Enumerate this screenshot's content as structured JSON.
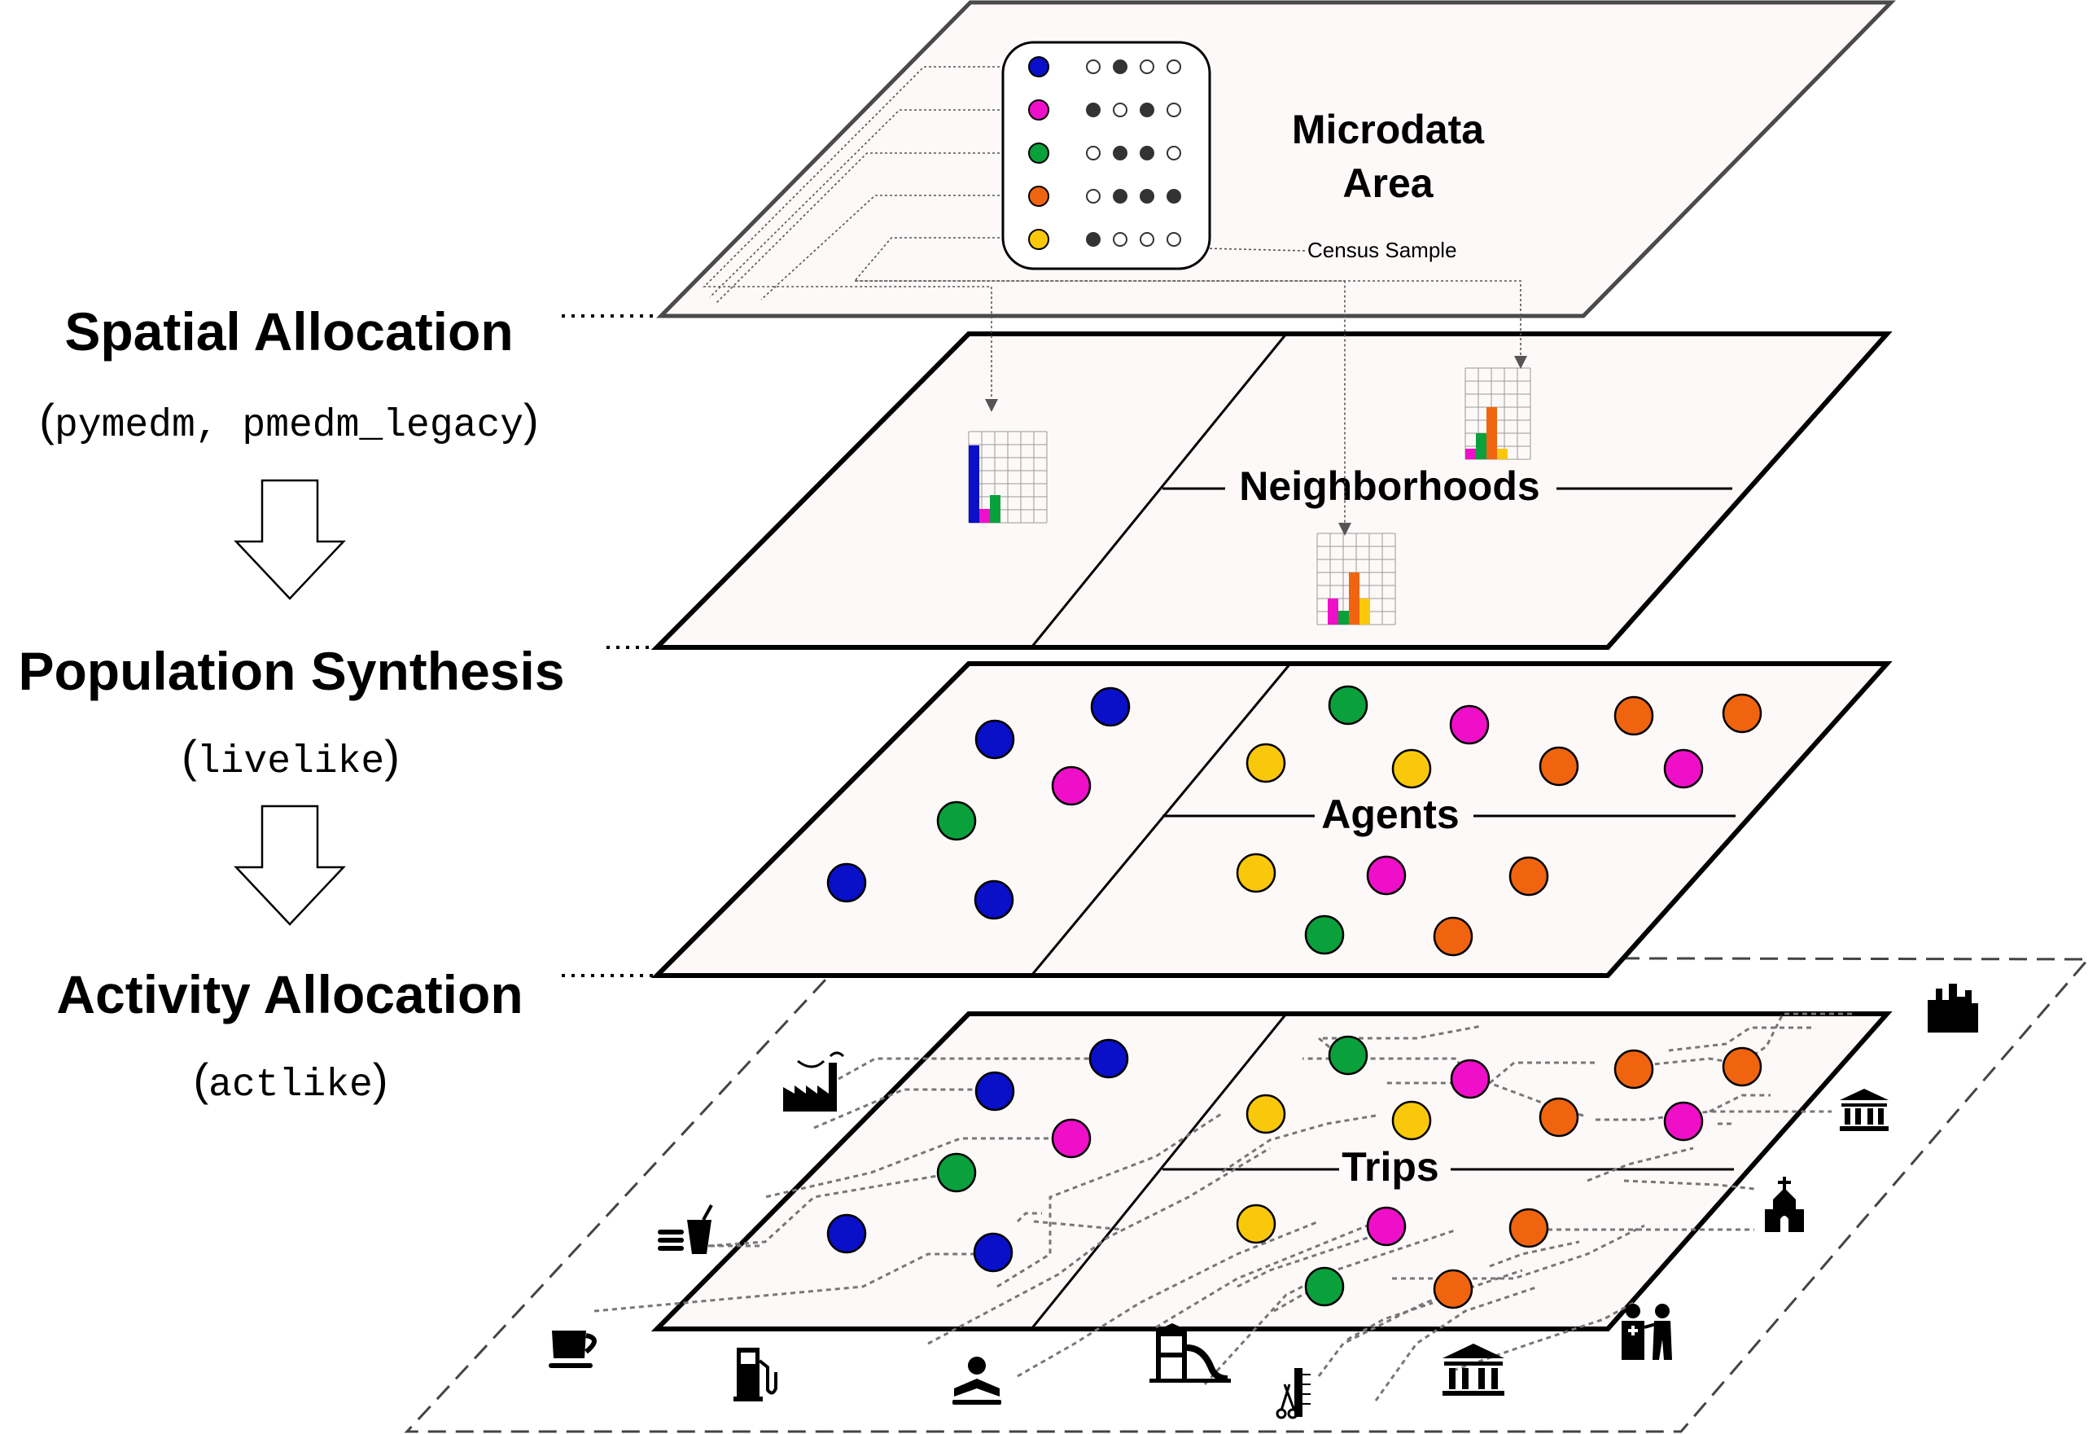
{
  "steps": [
    {
      "title": "Spatial Allocation",
      "packages": "pymedm, pmedm_legacy"
    },
    {
      "title": "Population Synthesis",
      "packages": "livelike"
    },
    {
      "title": "Activity Allocation",
      "packages": "actlike"
    }
  ],
  "layers": {
    "microdata": {
      "label_line1": "Microdata",
      "label_line2": "Area",
      "sample_label": "Census Sample"
    },
    "neighborhoods": {
      "label": "Neighborhoods"
    },
    "agents": {
      "label": "Agents"
    },
    "trips": {
      "label": "Trips"
    }
  },
  "colors": {
    "blue": "#0a0fc8",
    "magenta": "#f00fc8",
    "green": "#0aa03c",
    "orange": "#f0640f",
    "yellow": "#fac80a"
  },
  "icons": [
    "factory-icon",
    "food-icon",
    "coffee-icon",
    "fuel-icon",
    "reading-icon",
    "playground-icon",
    "barber-icon",
    "museum-icon",
    "doctor-icon",
    "church-icon",
    "bank-icon",
    "city-icon"
  ]
}
